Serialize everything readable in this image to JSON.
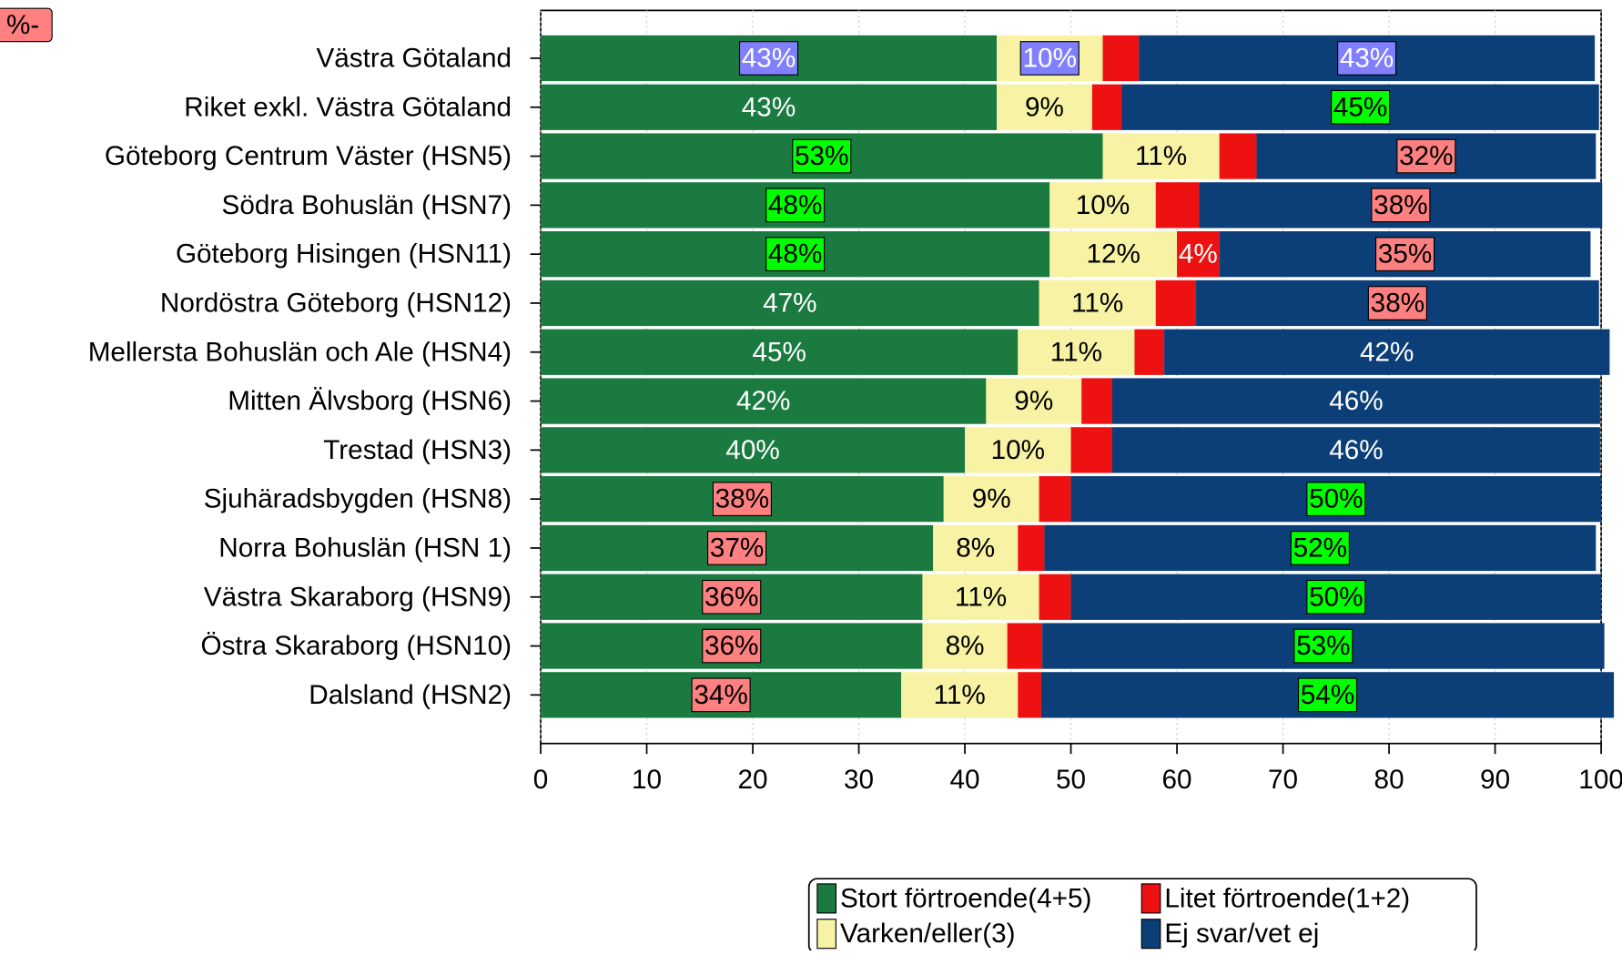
{
  "chart_data": {
    "type": "stacked-barh",
    "annotations": [
      "%-"
    ],
    "categories": [
      "Västra Götaland",
      "Riket exkl. Västra Götaland",
      "Göteborg Centrum Väster (HSN5)",
      "Södra Bohuslän (HSN7)",
      "Göteborg Hisingen (HSN11)",
      "Nordöstra Göteborg (HSN12)",
      "Mellersta Bohuslän och Ale (HSN4)",
      "Mitten Älvsborg (HSN6)",
      "Trestad (HSN3)",
      "Sjuhäradsbygden (HSN8)",
      "Norra Bohuslän (HSN 1)",
      "Västra Skaraborg (HSN9)",
      "Östra Skaraborg (HSN10)",
      "Dalsland (HSN2)"
    ],
    "series": [
      {
        "name": "Stort förtroende(4+5)",
        "color": "#1a7a40",
        "label_color": "#ffffff",
        "values": [
          43,
          43,
          53,
          48,
          48,
          47,
          45,
          42,
          40,
          38,
          37,
          36,
          36,
          34
        ],
        "value_labels": [
          "43%",
          "43%",
          "53%",
          "48%",
          "48%",
          "47%",
          "45%",
          "42%",
          "40%",
          "38%",
          "37%",
          "36%",
          "36%",
          "34%"
        ],
        "value_label_boxes": [
          "#8080ff",
          null,
          "#00ff00",
          "#00ff00",
          "#00ff00",
          null,
          null,
          null,
          null,
          "#ff8080",
          "#ff8080",
          "#ff8080",
          "#ff8080",
          "#ff8080"
        ]
      },
      {
        "name": "Varken/eller(3)",
        "color": "#f7f2a4",
        "label_color": "#000000",
        "values": [
          10,
          9,
          11,
          10,
          12,
          11,
          11,
          9,
          10,
          9,
          8,
          11,
          8,
          11
        ],
        "value_labels": [
          "10%",
          "9%",
          "11%",
          "10%",
          "12%",
          "11%",
          "11%",
          "9%",
          "10%",
          "9%",
          "8%",
          "11%",
          "8%",
          "11%"
        ],
        "value_label_boxes": [
          "#8080ff",
          null,
          null,
          null,
          null,
          null,
          null,
          null,
          null,
          null,
          null,
          null,
          null,
          null
        ]
      },
      {
        "name": "Litet förtroende(1+2)",
        "color": "#ee1111",
        "label_color": "#ffffff",
        "values": [
          3.4,
          2.8,
          3.5,
          4.1,
          4,
          3.8,
          2.8,
          2.9,
          3.9,
          3,
          2.5,
          3,
          3.3,
          2.2
        ],
        "value_labels": [
          null,
          null,
          null,
          null,
          "4%",
          null,
          null,
          null,
          null,
          null,
          null,
          null,
          null,
          null
        ],
        "value_label_boxes": [
          null,
          null,
          null,
          null,
          null,
          null,
          null,
          null,
          null,
          null,
          null,
          null,
          null,
          null
        ]
      },
      {
        "name": "Ej svar/vet ej",
        "color": "#0c3e78",
        "label_color": "#ffffff",
        "values": [
          43,
          45,
          32,
          38,
          35,
          38,
          42,
          46,
          46,
          50,
          52,
          50,
          53,
          54
        ],
        "value_labels": [
          "43%",
          "45%",
          "32%",
          "38%",
          "35%",
          "38%",
          "42%",
          "46%",
          "46%",
          "50%",
          "52%",
          "50%",
          "53%",
          "54%"
        ],
        "value_label_boxes": [
          "#8080ff",
          "#00ff00",
          "#ff8080",
          "#ff8080",
          "#ff8080",
          "#ff8080",
          null,
          null,
          null,
          "#00ff00",
          "#00ff00",
          "#00ff00",
          "#00ff00",
          "#00ff00"
        ]
      }
    ],
    "xlim": [
      0,
      100
    ],
    "xticks": [
      0,
      10,
      20,
      30,
      40,
      50,
      60,
      70,
      80,
      90,
      100
    ],
    "grid": true
  }
}
